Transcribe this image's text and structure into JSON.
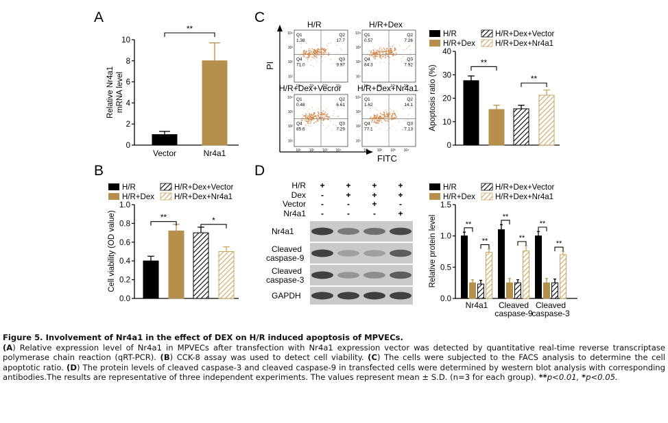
{
  "colors": {
    "hr": "#000000",
    "dex": "#b5904d",
    "vector_hatch": "#000000",
    "nr4a1_hatch": "#c9a564",
    "flow_dots": "#d2874a"
  },
  "chart_data": [
    {
      "panel": "A",
      "type": "bar",
      "categories": [
        "Vector",
        "Nr4a1"
      ],
      "values": [
        1.0,
        8.0
      ],
      "errors": [
        0.3,
        1.7
      ],
      "ylabel_lines": [
        "Relative Nr4a1",
        "mRNA level"
      ],
      "ylim": [
        0,
        10
      ],
      "yticks": [
        "0",
        "2",
        "4",
        "6",
        "8",
        "10"
      ],
      "bar_styles": [
        "hr",
        "dex"
      ],
      "significance": [
        {
          "pair": [
            0,
            1
          ],
          "label": "**"
        }
      ]
    },
    {
      "panel": "B",
      "type": "bar",
      "categories": [
        "H/R",
        "H/R+Dex",
        "H/R+Dex+Vector",
        "H/R+Dex+Nr4a1"
      ],
      "values": [
        0.4,
        0.72,
        0.7,
        0.5
      ],
      "errors": [
        0.05,
        0.07,
        0.06,
        0.05
      ],
      "ylabel": "Cell viability (OD value)",
      "ylim": [
        0,
        1.0
      ],
      "yticks": [
        "0.0",
        "0.2",
        "0.4",
        "0.6",
        "0.8",
        "1.0"
      ],
      "legend": [
        "H/R",
        "H/R+Dex",
        "H/R+Dex+Vector",
        "H/R+Dex+Nr4a1"
      ],
      "significance": [
        {
          "pair": [
            0,
            1
          ],
          "label": "**"
        },
        {
          "pair": [
            2,
            3
          ],
          "label": "*"
        }
      ]
    },
    {
      "panel": "C",
      "type": "bar",
      "categories": [
        "H/R",
        "H/R+Dex",
        "H/R+Dex+Vector",
        "H/R+Dex+Nr4a1"
      ],
      "values": [
        27.5,
        15.2,
        15.5,
        21.3
      ],
      "errors": [
        2.0,
        1.8,
        1.5,
        2.2
      ],
      "ylabel": "Apoptosis ratio (%)",
      "ylim": [
        0,
        40
      ],
      "yticks": [
        "0",
        "10",
        "20",
        "30",
        "40"
      ],
      "legend": [
        "H/R",
        "H/R+Dex",
        "H/R+Dex+Vector",
        "H/R+Dex+Nr4a1"
      ],
      "significance": [
        {
          "pair": [
            0,
            1
          ],
          "label": "**"
        },
        {
          "pair": [
            2,
            3
          ],
          "label": "**"
        }
      ]
    },
    {
      "panel": "D",
      "type": "bar",
      "categories": [
        "Nr4a1",
        "Cleaved caspase-9",
        "Cleaved caspase-3"
      ],
      "category_lines": [
        [
          "Nr4a1"
        ],
        [
          "Cleaved",
          "caspase-9"
        ],
        [
          "Cleaved",
          "caspase-3"
        ]
      ],
      "series": [
        {
          "name": "H/R",
          "values": [
            1.0,
            1.1,
            1.0
          ],
          "errors": [
            0.06,
            0.08,
            0.07
          ]
        },
        {
          "name": "H/R+Dex",
          "values": [
            0.25,
            0.25,
            0.25
          ],
          "errors": [
            0.05,
            0.07,
            0.07
          ]
        },
        {
          "name": "H/R+Dex+Vector",
          "values": [
            0.23,
            0.25,
            0.25
          ],
          "errors": [
            0.06,
            0.05,
            0.06
          ]
        },
        {
          "name": "H/R+Dex+Nr4a1",
          "values": [
            0.74,
            0.76,
            0.7
          ],
          "errors": [
            0.05,
            0.08,
            0.05
          ]
        }
      ],
      "ylabel": "Relative protein level",
      "ylim": [
        0,
        1.5
      ],
      "yticks": [
        "0.0",
        "0.5",
        "1.0",
        "1.5"
      ],
      "significance": [
        {
          "group": 0,
          "pair": [
            0,
            1
          ],
          "label": "**"
        },
        {
          "group": 0,
          "pair": [
            2,
            3
          ],
          "label": "**"
        },
        {
          "group": 1,
          "pair": [
            0,
            1
          ],
          "label": "**"
        },
        {
          "group": 1,
          "pair": [
            2,
            3
          ],
          "label": "**"
        },
        {
          "group": 2,
          "pair": [
            0,
            1
          ],
          "label": "**"
        },
        {
          "group": 2,
          "pair": [
            2,
            3
          ],
          "label": "**"
        }
      ]
    }
  ],
  "panel_labels": [
    "A",
    "B",
    "C",
    "D"
  ],
  "flow": {
    "titles": [
      "H/R",
      "H/R+Dex",
      "H/R+Dex+Vecror",
      "H/R+Dex+Nr4a1"
    ],
    "quadrants": [
      {
        "Q1": "1.38",
        "Q2": "17.7",
        "Q3": "9.97",
        "Q4": "71.0"
      },
      {
        "Q1": "0.57",
        "Q2": "7.26",
        "Q3": "7.92",
        "Q4": "84.3"
      },
      {
        "Q1": "0.48",
        "Q2": "6.61",
        "Q3": "7.29",
        "Q4": "85.6"
      },
      {
        "Q1": "1.62",
        "Q2": "14.1",
        "Q3": "7.13",
        "Q4": "77.1"
      }
    ],
    "y_axis": "PI",
    "x_axis": "FITC"
  },
  "blot": {
    "header_rows": [
      {
        "label": "H/R",
        "marks": [
          "+",
          "+",
          "+",
          "+"
        ]
      },
      {
        "label": "Dex",
        "marks": [
          "-",
          "+",
          "+",
          "+"
        ]
      },
      {
        "label": "Vector",
        "marks": [
          "-",
          "-",
          "+",
          "-"
        ]
      },
      {
        "label": "Nr4a1",
        "marks": [
          "-",
          "-",
          "-",
          "+"
        ]
      }
    ],
    "bands": [
      {
        "label_lines": [
          "Nr4a1"
        ],
        "intensity": [
          0.85,
          0.55,
          0.6,
          0.8
        ]
      },
      {
        "label_lines": [
          "Cleaved",
          "caspase-9"
        ],
        "intensity": [
          0.85,
          0.35,
          0.35,
          0.7
        ]
      },
      {
        "label_lines": [
          "Cleaved",
          "caspase-3"
        ],
        "intensity": [
          0.85,
          0.4,
          0.45,
          0.7
        ]
      },
      {
        "label_lines": [
          "GAPDH"
        ],
        "intensity": [
          0.85,
          0.85,
          0.85,
          0.85
        ]
      }
    ]
  },
  "caption": {
    "title": "Figure 5. Involvement of Nr4a1 in the effect of DEX on H/R induced apoptosis of MPVECs.",
    "parts": [
      {
        "b": "(A",
        "t": ") Relative expression level of Nr4a1 in MPVECs after transfection with Nr4a1 expression vector was detected by quantitative real-time reverse transcriptase polymerase chain reaction (qRT-PCR). "
      },
      {
        "b": "(B",
        "t": ") CCK-8 assay was used to detect cell viability. "
      },
      {
        "b": "(C",
        "t": ") The cells were subjected to the FACS analysis to determine the cell apoptotic ratio. "
      },
      {
        "b": "(D",
        "t": ") The protein levels of cleaved caspase-3 and cleaved caspase-9 in transfected cells were determined by western blot analysis with corresponding antibodies.The results are representative of three independent experiments. The values represent mean ± S.D. (n=3 for each group). "
      },
      {
        "b": "**",
        "t": "p<0.01, "
      },
      {
        "b": "*",
        "t": "p<0.05."
      }
    ]
  }
}
